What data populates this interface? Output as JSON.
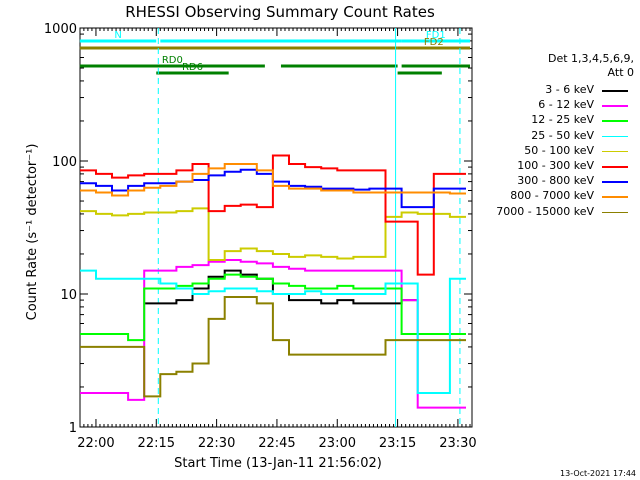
{
  "page": {
    "title": "RHESSI Observing Summary Count Rates",
    "footer_date": "13-Oct-2021 17:44"
  },
  "chart_data": {
    "type": "line",
    "title": "RHESSI Observing Summary Count Rates",
    "xlabel": "Start Time (13-Jan-11 21:56:02)",
    "ylabel": "Count Rate (s⁻¹ detector⁻¹)",
    "y_scale": "log",
    "xlim": [
      "21:56:02",
      "23:33:30"
    ],
    "ylim": [
      1,
      1000
    ],
    "x_ticks": [
      "22:00",
      "22:15",
      "22:30",
      "22:45",
      "23:00",
      "23:15",
      "23:30"
    ],
    "y_ticks": [
      "1",
      "10",
      "100",
      "1000"
    ],
    "legend": {
      "header_line1": "Det 1,3,4,5,6,9,",
      "header_line2": "Att 0",
      "placement": "right"
    },
    "flag_bars": [
      {
        "label": "N",
        "color": "#00ffff",
        "start": "21:56",
        "end": "22:15"
      },
      {
        "label": "",
        "color": "#00ffff",
        "start": "22:16",
        "end": "23:16"
      },
      {
        "label": "FD1",
        "color": "#00ffff",
        "start": "23:16",
        "end": "23:33"
      },
      {
        "label": "",
        "color": "#8b8000",
        "start": "21:56",
        "end": "23:15"
      },
      {
        "label": "FD2",
        "color": "#8b8000",
        "start": "23:15",
        "end": "23:33"
      },
      {
        "label": "RD0",
        "color": "#008000",
        "start": "21:56",
        "end": "22:42"
      },
      {
        "label": "",
        "color": "#008000",
        "start": "22:46",
        "end": "23:15"
      },
      {
        "label": "",
        "color": "#008000",
        "start": "23:16",
        "end": "23:33"
      },
      {
        "label": "RD6",
        "color": "#008000",
        "start": "22:15",
        "end": "22:33"
      },
      {
        "label": "",
        "color": "#008000",
        "start": "23:15",
        "end": "23:26"
      }
    ],
    "markers": [
      {
        "time": "22:15:30",
        "color": "#00ffff",
        "style": "dashed"
      },
      {
        "time": "23:14:30",
        "color": "#00ffff",
        "style": "solid"
      },
      {
        "time": "23:30:30",
        "color": "#00ffff",
        "style": "dashed"
      }
    ],
    "x": [
      "21:58",
      "22:02",
      "22:06",
      "22:10",
      "22:14",
      "22:18",
      "22:22",
      "22:26",
      "22:30",
      "22:34",
      "22:38",
      "22:42",
      "22:46",
      "22:50",
      "22:54",
      "22:58",
      "23:02",
      "23:06",
      "23:10",
      "23:14",
      "23:18",
      "23:22",
      "23:26",
      "23:30"
    ],
    "series": [
      {
        "name": "3 - 6 keV",
        "color": "#000000",
        "values": [
          null,
          null,
          null,
          null,
          8.5,
          8.5,
          9,
          11,
          13.5,
          15,
          14,
          13,
          10,
          9,
          9,
          8.5,
          9,
          8.5,
          8.5,
          8.5,
          9,
          null,
          null,
          null
        ]
      },
      {
        "name": "6 - 12 keV",
        "color": "#ff00ff",
        "values": [
          1.8,
          1.8,
          1.8,
          1.6,
          15,
          15,
          16,
          16.5,
          17.5,
          18,
          17.5,
          17,
          16,
          15.5,
          15,
          15,
          15,
          15,
          15,
          15,
          9,
          1.4,
          1.4,
          1.4
        ]
      },
      {
        "name": "12 - 25 keV",
        "color": "#00ff00",
        "values": [
          5,
          5,
          5,
          4.5,
          11,
          11,
          11.5,
          12,
          13,
          14,
          13.5,
          13,
          12,
          11.5,
          11,
          11,
          11.5,
          11,
          11,
          11,
          5,
          5,
          5,
          5
        ]
      },
      {
        "name": "25 - 50 keV",
        "color": "#00ffff",
        "values": [
          15,
          13,
          13,
          13,
          13,
          12,
          11,
          10,
          10.5,
          11,
          11,
          10.5,
          10,
          10,
          10.5,
          10,
          10,
          10,
          10,
          12,
          12,
          1.8,
          1.8,
          13
        ]
      },
      {
        "name": "50 - 100 keV",
        "color": "#cccc00",
        "values": [
          42,
          40,
          39,
          40,
          41,
          41,
          42,
          44,
          18,
          21,
          22,
          21,
          20,
          19,
          19.5,
          19,
          18.5,
          19,
          19,
          38,
          41,
          40,
          40,
          38
        ]
      },
      {
        "name": "100 - 300 keV",
        "color": "#ff0000",
        "values": [
          85,
          80,
          75,
          78,
          80,
          80,
          85,
          95,
          42,
          46,
          47,
          45,
          110,
          95,
          90,
          88,
          85,
          85,
          85,
          35,
          35,
          14,
          80,
          80
        ]
      },
      {
        "name": "300 - 800 keV",
        "color": "#0000ff",
        "values": [
          68,
          65,
          60,
          65,
          68,
          68,
          70,
          72,
          78,
          83,
          86,
          80,
          70,
          65,
          64,
          62,
          62,
          61,
          62,
          62,
          45,
          45,
          62,
          62
        ]
      },
      {
        "name": "800 - 7000 keV",
        "color": "#ff8c00",
        "values": [
          60,
          58,
          55,
          60,
          63,
          65,
          70,
          80,
          88,
          95,
          95,
          85,
          65,
          62,
          62,
          60,
          60,
          58,
          58,
          58,
          58,
          58,
          58,
          57
        ]
      },
      {
        "name": "7000 - 15000 keV",
        "color": "#8b8000",
        "values": [
          4.0,
          4.0,
          4.0,
          4.0,
          1.7,
          2.5,
          2.6,
          3.0,
          6.5,
          9.5,
          9.5,
          8.5,
          4.5,
          3.5,
          3.5,
          3.5,
          3.5,
          3.5,
          3.5,
          4.5,
          4.5,
          4.5,
          4.5,
          4.5
        ]
      }
    ]
  }
}
